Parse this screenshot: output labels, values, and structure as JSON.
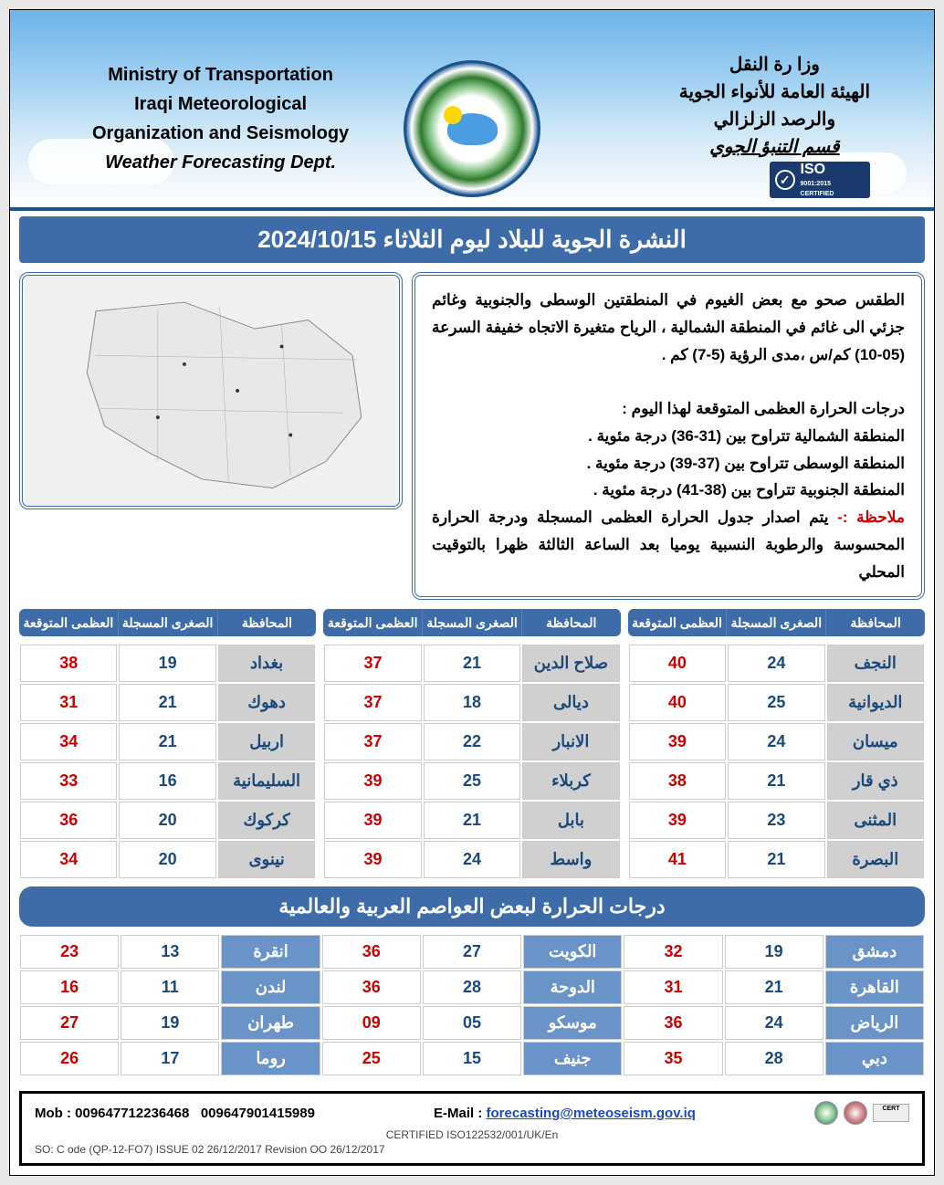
{
  "header": {
    "eng_line1": "Ministry of Transportation",
    "eng_line2": "Iraqi Meteorological",
    "eng_line3": "Organization and Seismology",
    "eng_dept": "Weather Forecasting Dept.",
    "ar_line1": "وزا رة النقل",
    "ar_line2": "الهيئة العامة للأنواء الجوية",
    "ar_line3": "والرصد الزلزالي",
    "ar_dept": "قسم التنبؤ الجوي",
    "iso_text": "ISO",
    "iso_sub": "9001:2015 CERTIFIED"
  },
  "title_bar": "النشرة الجوية للبلاد ليوم الثلاثاء  2024/10/15",
  "forecast": {
    "p1": "الطقس صحو مع بعض الغيوم  في المنطقتين الوسطى والجنوبية وغائم جزئي الى غائم في المنطقة الشمالية  ، الرياح متغيرة الاتجاه خفيفة السرعة (05-10) كم/س ،مدى الرؤية (5-7) كم .",
    "p2_title": "درجات الحرارة العظمى المتوقعة لهذا اليوم :",
    "p2_l1": "المنطقة الشمالية تتراوح بين (31-36) درجة مئوية .",
    "p2_l2": "المنطقة الوسطى تتراوح بين (37-39) درجة مئوية .",
    "p2_l3": "المنطقة الجنوبية تتراوح بين (38-41) درجة مئوية .",
    "note_label": "ملاحظة :-",
    "note_text": " يتم اصدار جدول الحرارة العظمى المسجلة ودرجة الحرارة المحسوسة والرطوبة النسبية يوميا بعد الساعة الثالثة ظهرا بالتوقيت المحلي"
  },
  "col_headers": {
    "gov": "المحافظة",
    "min": "الصغرى المسجلة",
    "max": "العظمى المتوقعة"
  },
  "iraq_tables": [
    [
      {
        "gov": "بغداد",
        "min": "19",
        "max": "38"
      },
      {
        "gov": "دهوك",
        "min": "21",
        "max": "31"
      },
      {
        "gov": "اربيل",
        "min": "21",
        "max": "34"
      },
      {
        "gov": "السليمانية",
        "min": "16",
        "max": "33"
      },
      {
        "gov": "كركوك",
        "min": "20",
        "max": "36"
      },
      {
        "gov": "نينوى",
        "min": "20",
        "max": "34"
      }
    ],
    [
      {
        "gov": "صلاح الدين",
        "min": "21",
        "max": "37"
      },
      {
        "gov": "ديالى",
        "min": "18",
        "max": "37"
      },
      {
        "gov": "الانبار",
        "min": "22",
        "max": "37"
      },
      {
        "gov": "كربلاء",
        "min": "25",
        "max": "39"
      },
      {
        "gov": "بابل",
        "min": "21",
        "max": "39"
      },
      {
        "gov": "واسط",
        "min": "24",
        "max": "39"
      }
    ],
    [
      {
        "gov": "النجف",
        "min": "24",
        "max": "40"
      },
      {
        "gov": "الديوانية",
        "min": "25",
        "max": "40"
      },
      {
        "gov": "ميسان",
        "min": "24",
        "max": "39"
      },
      {
        "gov": "ذي قار",
        "min": "21",
        "max": "38"
      },
      {
        "gov": "المثنى",
        "min": "23",
        "max": "39"
      },
      {
        "gov": "البصرة",
        "min": "21",
        "max": "41"
      }
    ]
  ],
  "capitals_title": "درجات الحرارة لبعض العواصم العربية والعالمية",
  "capitals_rows": [
    [
      {
        "city": "دمشق",
        "min": "19",
        "max": "32"
      },
      {
        "city": "الكويت",
        "min": "27",
        "max": "36"
      },
      {
        "city": "انقرة",
        "min": "13",
        "max": "23"
      }
    ],
    [
      {
        "city": "القاهرة",
        "min": "21",
        "max": "31"
      },
      {
        "city": "الدوحة",
        "min": "28",
        "max": "36"
      },
      {
        "city": "لندن",
        "min": "11",
        "max": "16"
      }
    ],
    [
      {
        "city": "الرياض",
        "min": "24",
        "max": "36"
      },
      {
        "city": "موسكو",
        "min": "05",
        "max": "09"
      },
      {
        "city": "طهران",
        "min": "19",
        "max": "27"
      }
    ],
    [
      {
        "city": "دبي",
        "min": "28",
        "max": "35"
      },
      {
        "city": "جنيف",
        "min": "15",
        "max": "25"
      },
      {
        "city": "روما",
        "min": "17",
        "max": "26"
      }
    ]
  ],
  "footer": {
    "mob_label": "Mob :",
    "mob1": "009647712236468",
    "mob2": "009647901415989",
    "email_label": "E-Mail :",
    "email": "forecasting@meteoseism.gov.iq",
    "cert": "CERTIFIED ISO122532/001/UK/En",
    "rev": "SO:   C ode (QP-12-FO7)   ISSUE  02  26/12/2017  Revision   OO  26/12/2017"
  }
}
